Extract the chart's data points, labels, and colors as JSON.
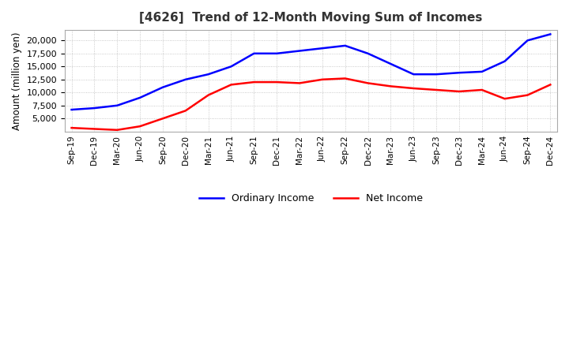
{
  "title": "[4626]  Trend of 12-Month Moving Sum of Incomes",
  "ylabel": "Amount (million yen)",
  "ylim": [
    2500,
    22000
  ],
  "yticks": [
    5000,
    7500,
    10000,
    12500,
    15000,
    17500,
    20000
  ],
  "background_color": "#ffffff",
  "grid_color": "#aaaaaa",
  "dates": [
    "Sep-19",
    "Dec-19",
    "Mar-20",
    "Jun-20",
    "Sep-20",
    "Dec-20",
    "Mar-21",
    "Jun-21",
    "Sep-21",
    "Dec-21",
    "Mar-22",
    "Jun-22",
    "Sep-22",
    "Dec-22",
    "Mar-23",
    "Jun-23",
    "Sep-23",
    "Dec-23",
    "Mar-24",
    "Jun-24",
    "Sep-24",
    "Dec-24"
  ],
  "ordinary_income": [
    6700,
    7000,
    7500,
    9000,
    11000,
    12500,
    13500,
    15000,
    17500,
    17500,
    18000,
    18500,
    19000,
    17500,
    15500,
    13500,
    13500,
    13800,
    14000,
    16000,
    20000,
    21200
  ],
  "net_income": [
    3200,
    3000,
    2800,
    3500,
    5000,
    6500,
    9500,
    11500,
    12000,
    12000,
    11800,
    12500,
    12700,
    11800,
    11200,
    10800,
    10500,
    10200,
    10500,
    8800,
    9500,
    11500
  ],
  "ordinary_color": "#0000ff",
  "net_color": "#ff0000",
  "line_width": 1.8
}
